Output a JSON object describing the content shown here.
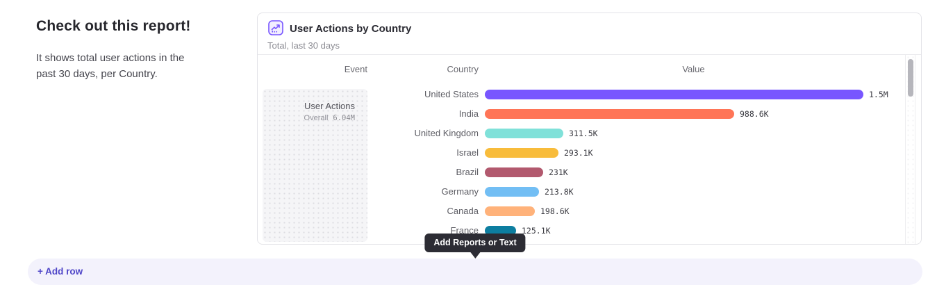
{
  "intro": {
    "title": "Check out this report!",
    "description": "It shows total user actions in the past 30 days, per Country."
  },
  "report_card": {
    "title": "User Actions by Country",
    "subtitle": "Total, last 30 days",
    "icon": "line-chart-icon",
    "columns": [
      "Event",
      "Country",
      "Value"
    ],
    "event": {
      "name": "User Actions",
      "overall_label": "Overall",
      "overall_value": "6.04M"
    }
  },
  "chart_data": {
    "type": "bar",
    "orientation": "horizontal",
    "title": "User Actions by Country",
    "xlabel": "Value",
    "ylabel": "Country",
    "categories": [
      "United States",
      "India",
      "United Kingdom",
      "Israel",
      "Brazil",
      "Germany",
      "Canada",
      "France"
    ],
    "values": [
      1500000,
      988600,
      311500,
      293100,
      231000,
      213800,
      198600,
      125100
    ],
    "value_labels": [
      "1.5M",
      "988.6K",
      "311.5K",
      "293.1K",
      "231K",
      "213.8K",
      "198.6K",
      "125.1K"
    ],
    "colors": [
      "#7856ff",
      "#ff7557",
      "#80e1d9",
      "#f8bc3b",
      "#b2596e",
      "#72bef4",
      "#ffb27a",
      "#0d7ea0"
    ],
    "xlim": [
      0,
      1500000
    ],
    "grid": false,
    "legend": false
  },
  "tooltip": {
    "label": "Add Reports or Text"
  },
  "add_row": {
    "label": "+ Add row"
  },
  "colors": {
    "accent": "#7856ff",
    "link": "#4f46c8",
    "tooltip_bg": "#2c2c34",
    "event_cell_bg": "#f5f5f7"
  }
}
